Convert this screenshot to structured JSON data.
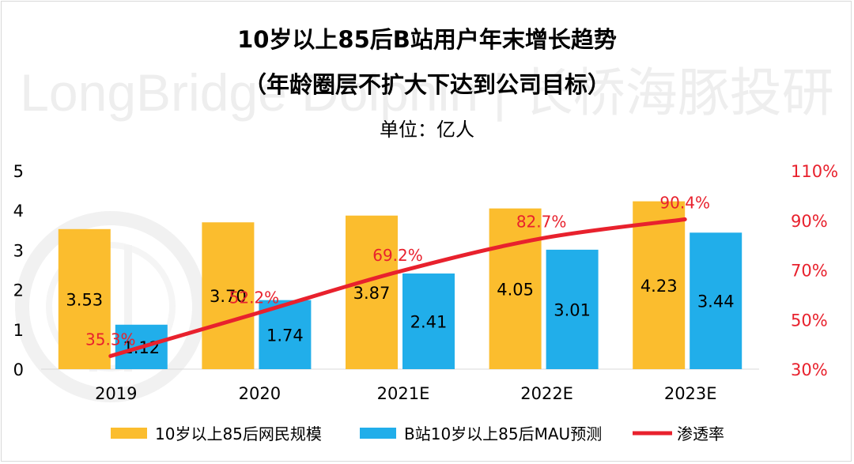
{
  "chart_data": {
    "type": "bar+line",
    "title": "10岁以上85后B站用户年末增长趋势",
    "subtitle": "（年龄圈层不扩大下达到公司目标）",
    "unit": "单位：亿人",
    "watermark": "LongBridge Dolphin | 长桥海豚投研",
    "categories": [
      "2019",
      "2020",
      "2021E",
      "2022E",
      "2023E"
    ],
    "series": [
      {
        "name": "10岁以上85后网民规模",
        "type": "bar",
        "axis": "left",
        "color": "#FBBD2E",
        "values": [
          3.53,
          3.7,
          3.87,
          4.05,
          4.23
        ],
        "labels": [
          "3.53",
          "3.70",
          "3.87",
          "4.05",
          "4.23"
        ]
      },
      {
        "name": "B站10岁以上85后MAU预测",
        "type": "bar",
        "axis": "left",
        "color": "#21AEEA",
        "values": [
          1.12,
          1.74,
          2.41,
          3.01,
          3.44
        ],
        "labels": [
          "1.12",
          "1.74",
          "2.41",
          "3.01",
          "3.44"
        ]
      },
      {
        "name": "渗透率",
        "type": "line",
        "axis": "right",
        "color": "#E8212D",
        "values": [
          35.3,
          52.2,
          69.2,
          82.7,
          90.4
        ],
        "labels": [
          "35.3%",
          "52.2%",
          "69.2%",
          "82.7%",
          "90.4%"
        ]
      }
    ],
    "y_left": {
      "min": 0,
      "max": 5,
      "ticks": [
        "0",
        "1",
        "2",
        "3",
        "4",
        "5"
      ]
    },
    "y_right": {
      "min": 30,
      "max": 110,
      "ticks": [
        "30%",
        "50%",
        "70%",
        "90%",
        "110%"
      ],
      "color": "#E8212D"
    },
    "grid": false,
    "legend_position": "bottom"
  }
}
